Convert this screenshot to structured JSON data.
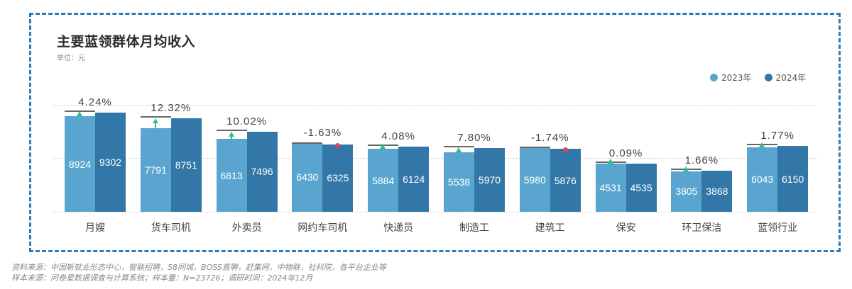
{
  "title": "主要蓝领群体月均收入",
  "unit": "单位：元",
  "legend": [
    {
      "label": "2023年",
      "color": "#5aa5cf"
    },
    {
      "label": "2024年",
      "color": "#3277a8"
    }
  ],
  "colors": {
    "bar_2023": "#5aa5cf",
    "bar_2024": "#3277a8",
    "border": "#2f7bb8",
    "increase": "#2fbf7f",
    "decrease": "#d9475a"
  },
  "notes": [
    "资料来源：中国新就业形态中心，智联招聘，58同城，BOSS直聘，赶集网，中物联，社科院，各平台企业等",
    "样本来源：问卷星数据调查与计算系统；样本量：N=23726；调研时间：2024年12月"
  ],
  "chart_data": {
    "type": "bar",
    "title": "主要蓝领群体月均收入",
    "subtitle": "单位：元",
    "xlabel": "",
    "ylabel": "",
    "ylim": [
      0,
      10000
    ],
    "grid": true,
    "legend_position": "top-right",
    "categories": [
      "月嫂",
      "货车司机",
      "外卖员",
      "网约车司机",
      "快递员",
      "制造工",
      "建筑工",
      "保安",
      "环卫保洁",
      "蓝领行业"
    ],
    "series": [
      {
        "name": "2023年",
        "values": [
          8924,
          7791,
          6813,
          6430,
          5884,
          5538,
          5980,
          4531,
          3805,
          6043
        ]
      },
      {
        "name": "2024年",
        "values": [
          9302,
          8751,
          7496,
          6325,
          6124,
          5970,
          5876,
          4535,
          3868,
          6150
        ]
      }
    ],
    "annotations": {
      "growth_labels": [
        "4.24%",
        "12.32%",
        "10.02%",
        "-1.63%",
        "4.08%",
        "7.80%",
        "-1.74%",
        "0.09%",
        "1.66%",
        "1.77%"
      ],
      "growth_direction": [
        "up",
        "up",
        "up",
        "down",
        "up",
        "up",
        "down",
        "up",
        "up",
        "up"
      ]
    }
  }
}
